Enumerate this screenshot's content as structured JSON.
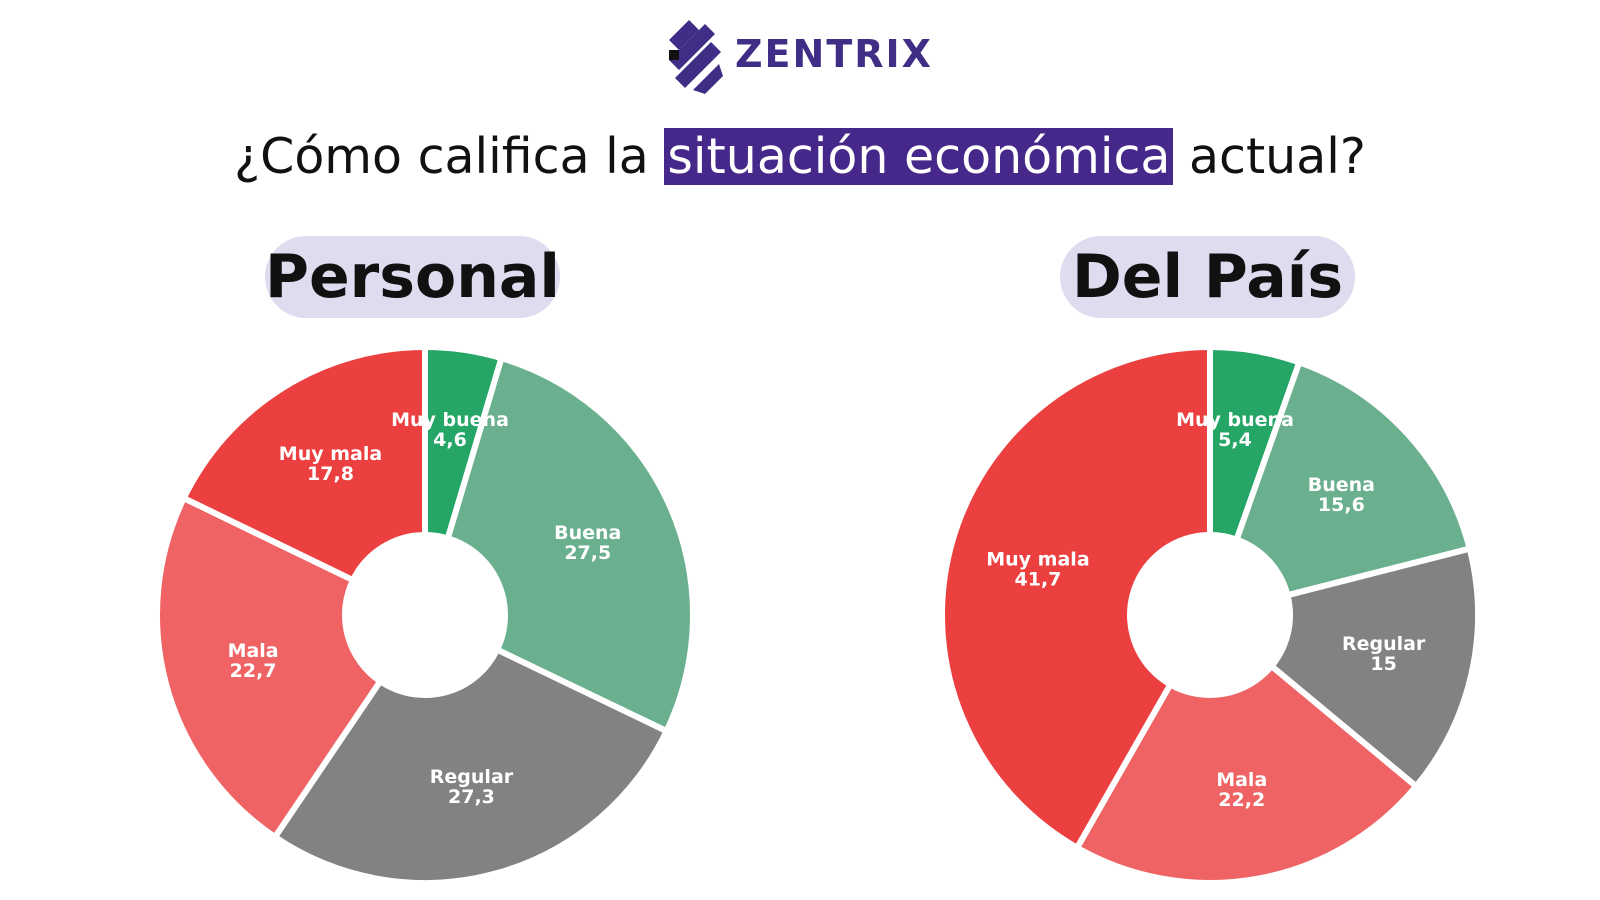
{
  "brand": {
    "name": "ZENTRIX",
    "color": "#3f2d86"
  },
  "header": {
    "question_before": "¿Cómo califica la",
    "question_highlight": "situación económica",
    "question_after": "actual?",
    "highlight_color": "#45288a"
  },
  "chart_data": [
    {
      "type": "pie",
      "title": "Personal",
      "donut": true,
      "slices": [
        {
          "label": "Muy buena",
          "value_label": "4,6",
          "value": 4.6,
          "color": "#25a566"
        },
        {
          "label": "Buena",
          "value_label": "27,5",
          "value": 27.5,
          "color": "#6ab08e"
        },
        {
          "label": "Regular",
          "value_label": "27,3",
          "value": 27.3,
          "color": "#828283"
        },
        {
          "label": "Mala",
          "value_label": "22,7",
          "value": 22.7,
          "color": "#ef6364"
        },
        {
          "label": "Muy mala",
          "value_label": "17,8",
          "value": 17.8,
          "color": "#ec3f3f"
        }
      ]
    },
    {
      "type": "pie",
      "title": "Del País",
      "donut": true,
      "slices": [
        {
          "label": "Muy buena",
          "value_label": "5,4",
          "value": 5.4,
          "color": "#25a566"
        },
        {
          "label": "Buena",
          "value_label": "15,6",
          "value": 15.6,
          "color": "#6ab08e"
        },
        {
          "label": "Regular",
          "value_label": "15",
          "value": 15,
          "color": "#828283"
        },
        {
          "label": "Mala",
          "value_label": "22,2",
          "value": 22.2,
          "color": "#ef6364"
        },
        {
          "label": "Muy mala",
          "value_label": "41,7",
          "value": 41.7,
          "color": "#ec3f3f"
        }
      ]
    }
  ]
}
